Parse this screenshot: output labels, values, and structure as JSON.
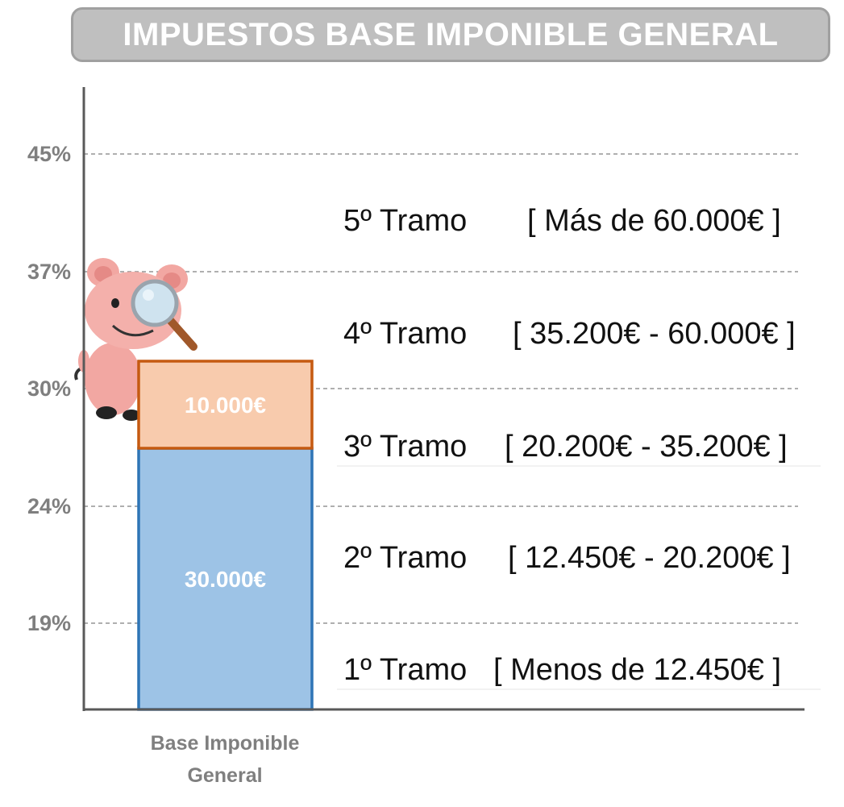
{
  "title": "IMPUESTOS BASE IMPONIBLE GENERAL",
  "colors": {
    "lower_segment_fill": "#9dc3e6",
    "lower_segment_stroke": "#2e75b6",
    "upper_segment_fill": "#f8cbad",
    "upper_segment_stroke": "#c55a11",
    "title_banner_fill": "#bfbfbf",
    "tick_text": "#7f7f7f"
  },
  "chart_data": {
    "type": "bar",
    "stacked": true,
    "categories": [
      "Base Imponible General"
    ],
    "category_label_lines": [
      "Base Imponible",
      "General"
    ],
    "y_ticks": [
      "19%",
      "24%",
      "30%",
      "37%",
      "45%"
    ],
    "series": [
      {
        "values": [
          30000
        ],
        "label": "30.000€"
      },
      {
        "values": [
          10000
        ],
        "label": "10.000€"
      }
    ],
    "bands": [
      {
        "tramo": "1º Tramo",
        "range": "[ Menos de 12.450€ ]"
      },
      {
        "tramo": "2º Tramo",
        "range": "[ 12.450€ - 20.200€ ]"
      },
      {
        "tramo": "3º Tramo",
        "range": "[ 20.200€ - 35.200€ ]"
      },
      {
        "tramo": "4º Tramo",
        "range": "[ 35.200€ - 60.000€ ]"
      },
      {
        "tramo": "5º Tramo",
        "range": "[ Más de 60.000€ ]"
      }
    ],
    "grid": true,
    "mascot_icon": "pig-with-magnifying-glass-icon"
  }
}
